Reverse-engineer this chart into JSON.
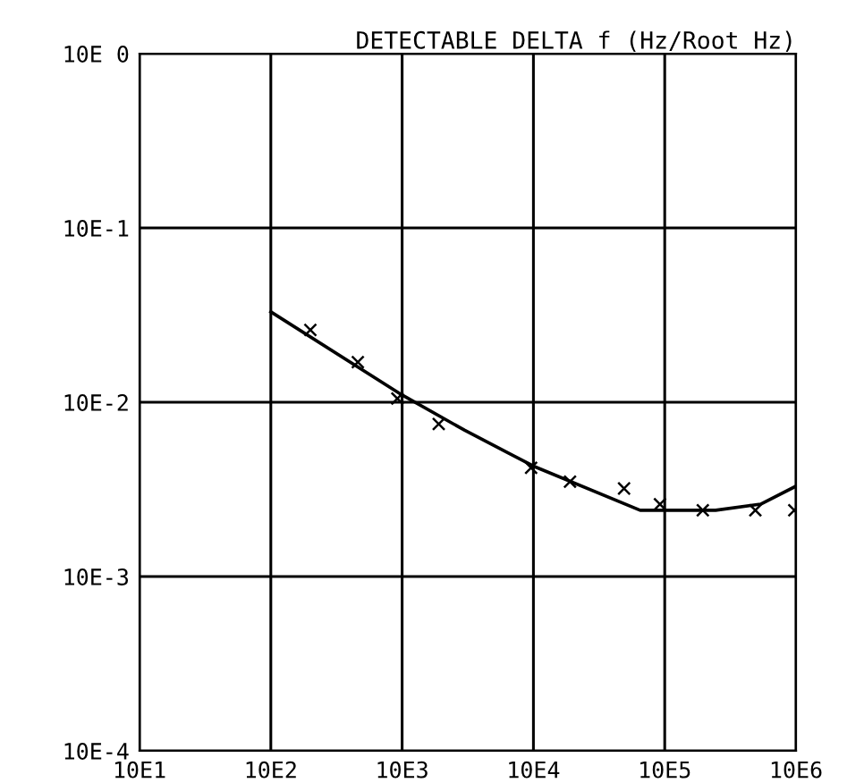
{
  "chart_data": {
    "type": "line",
    "title": "DETECTABLE DELTA f (Hz/Root Hz)",
    "log": "xy",
    "grid": true,
    "xlim": [
      100,
      10000000
    ],
    "ylim": [
      0.001,
      10
    ],
    "xticks": [
      {
        "value": 100,
        "label": "10E1"
      },
      {
        "value": 1000,
        "label": "10E2"
      },
      {
        "value": 10000,
        "label": "10E3"
      },
      {
        "value": 100000,
        "label": "10E4"
      },
      {
        "value": 1000000,
        "label": "10E5"
      },
      {
        "value": 10000000,
        "label": "10E6"
      }
    ],
    "yticks": [
      {
        "value": 0.001,
        "label": "10E-4"
      },
      {
        "value": 0.01,
        "label": "10E-3"
      },
      {
        "value": 0.1,
        "label": "10E-2"
      },
      {
        "value": 1,
        "label": "10E-1"
      },
      {
        "value": 10,
        "label": "10E 0"
      }
    ],
    "series": [
      {
        "color": "#000000",
        "marker": "none",
        "line_style": "solid",
        "x": [
          1000,
          10000,
          30000,
          100000,
          650000,
          2440000,
          5370000,
          10000000
        ],
        "values": [
          0.33,
          0.11,
          0.069,
          0.043,
          0.024,
          0.024,
          0.026,
          0.033
        ]
      },
      {
        "type": "scatter",
        "color": "#000000",
        "marker": "cross",
        "x": [
          2000,
          4600,
          9200,
          19000,
          96000,
          190000,
          490000,
          920000,
          1950000,
          4900000,
          9700000
        ],
        "values": [
          0.26,
          0.17,
          0.105,
          0.075,
          0.042,
          0.035,
          0.032,
          0.026,
          0.024,
          0.024,
          0.024
        ]
      }
    ]
  }
}
